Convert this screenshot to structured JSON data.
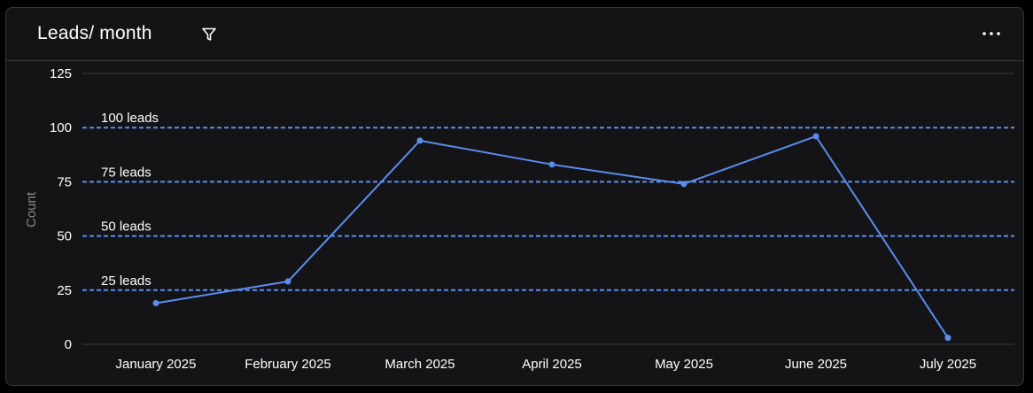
{
  "header": {
    "title": "Leads/ month",
    "filter_icon": "filter-icon",
    "more_icon": "more-horizontal-icon"
  },
  "colors": {
    "line": "#5b8def",
    "reference": "#5b8def",
    "axis_text": "#ffffff",
    "ylabel": "#8a8a8e",
    "grid": "#3a3a3e"
  },
  "chart_data": {
    "type": "line",
    "title": "Leads/ month",
    "xlabel": "",
    "ylabel": "Count",
    "ylim": [
      0,
      125
    ],
    "yticks": [
      0,
      25,
      50,
      75,
      100,
      125
    ],
    "categories": [
      "January 2025",
      "February 2025",
      "March 2025",
      "April 2025",
      "May 2025",
      "June 2025",
      "July 2025"
    ],
    "series": [
      {
        "values": [
          19,
          29,
          94,
          83,
          74,
          96,
          3
        ]
      }
    ],
    "reference_lines": [
      {
        "value": 100,
        "label": "100 leads"
      },
      {
        "value": 75,
        "label": "75 leads"
      },
      {
        "value": 50,
        "label": "50 leads"
      },
      {
        "value": 25,
        "label": "25 leads"
      }
    ],
    "grid": false
  }
}
